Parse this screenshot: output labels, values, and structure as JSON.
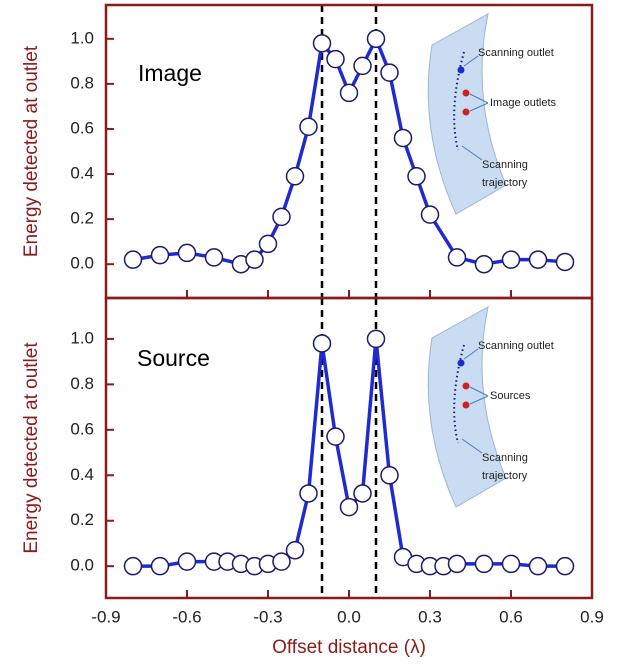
{
  "chart_data": [
    {
      "type": "line",
      "panel_label": "Image",
      "ylabel": "Energy detected at outlet",
      "x": [
        -0.8,
        -0.7,
        -0.6,
        -0.5,
        -0.4,
        -0.35,
        -0.3,
        -0.25,
        -0.2,
        -0.15,
        -0.1,
        -0.05,
        0,
        0.05,
        0.1,
        0.15,
        0.2,
        0.25,
        0.3,
        0.4,
        0.5,
        0.6,
        0.7,
        0.8
      ],
      "values": [
        0.02,
        0.04,
        0.05,
        0.03,
        0.0,
        0.02,
        0.09,
        0.21,
        0.39,
        0.61,
        0.98,
        0.91,
        0.76,
        0.88,
        1.0,
        0.85,
        0.56,
        0.39,
        0.22,
        0.03,
        0.0,
        0.02,
        0.02,
        0.01
      ],
      "color": "#1f2bd0",
      "marker_edge": "#1a1a6e",
      "xlim": [
        -0.9,
        0.9
      ],
      "ylim": [
        -0.15,
        1.15
      ],
      "yticks": [
        {
          "value": 0,
          "label": "0.0"
        },
        0.2,
        0.4,
        0.6,
        0.8,
        {
          "value": 1,
          "label": "1.0"
        }
      ],
      "vlines": [
        -0.1,
        0.1
      ],
      "inset_labels": [
        "Scanning outlet",
        "Image outlets",
        "Scanning",
        "trajectory"
      ]
    },
    {
      "type": "line",
      "panel_label": "Source",
      "ylabel": "Energy detected at outlet",
      "x": [
        -0.8,
        -0.7,
        -0.6,
        -0.5,
        -0.45,
        -0.4,
        -0.35,
        -0.3,
        -0.25,
        -0.2,
        -0.15,
        -0.1,
        -0.05,
        0,
        0.05,
        0.1,
        0.15,
        0.2,
        0.25,
        0.3,
        0.35,
        0.4,
        0.5,
        0.6,
        0.7,
        0.8
      ],
      "values": [
        0.0,
        0.0,
        0.02,
        0.02,
        0.02,
        0.01,
        0.0,
        0.01,
        0.02,
        0.07,
        0.32,
        0.98,
        0.57,
        0.26,
        0.32,
        1.0,
        0.4,
        0.04,
        0.01,
        0.0,
        0.0,
        0.01,
        0.01,
        0.01,
        0.0,
        0.0
      ],
      "color": "#1f2bd0",
      "marker_edge": "#1a1a6e",
      "xlim": [
        -0.9,
        0.9
      ],
      "ylim": [
        -0.14,
        1.18
      ],
      "yticks": [
        {
          "value": 0,
          "label": "0.0"
        },
        0.2,
        0.4,
        0.6,
        0.8,
        {
          "value": 1,
          "label": "1.0"
        }
      ],
      "xticks": [
        -0.9,
        -0.6,
        -0.3,
        {
          "value": 0,
          "label": "0.0"
        },
        0.3,
        0.6,
        0.9
      ],
      "xlabel": "Offset distance (λ)",
      "vlines": [
        -0.1,
        0.1
      ],
      "inset_labels": [
        "Scanning outlet",
        "Sources",
        "Scanning",
        "trajectory"
      ]
    }
  ]
}
